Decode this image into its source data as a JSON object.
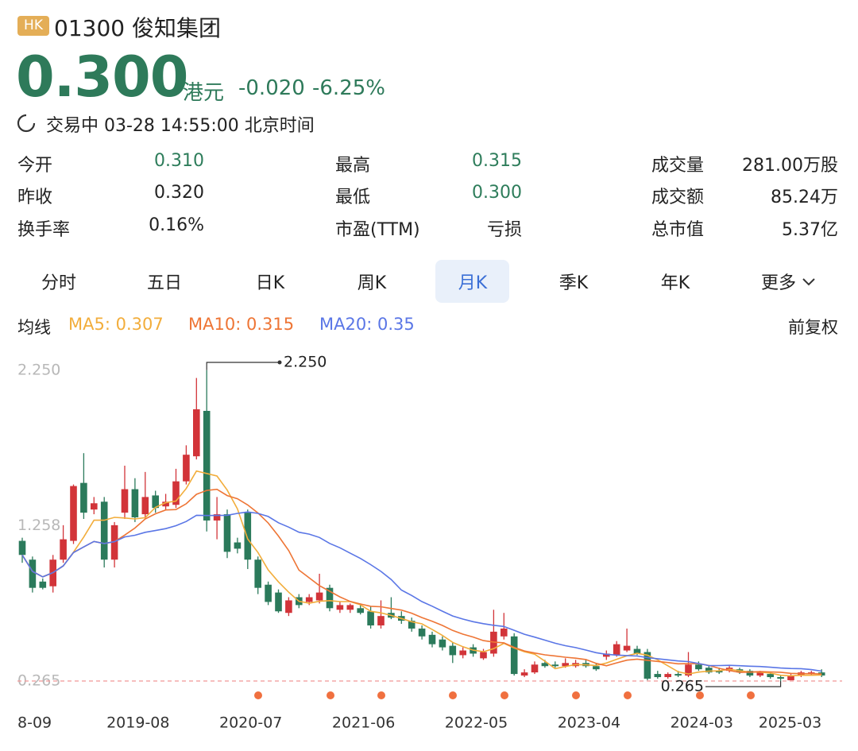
{
  "header": {
    "market": "HK",
    "code_name": "01300 俊知集团",
    "price": "0.300",
    "currency": "港元",
    "change": "-0.020",
    "change_pct": "-6.25%",
    "status": "交易中 03-28 14:55:00 北京时间"
  },
  "stats": [
    [
      {
        "label": "今开",
        "value": "0.310",
        "color": "#2e7d5b"
      },
      {
        "label": "最高",
        "value": "0.315",
        "color": "#2e7d5b"
      },
      {
        "label": "成交量",
        "value": "281.00万股"
      }
    ],
    [
      {
        "label": "昨收",
        "value": "0.320"
      },
      {
        "label": "最低",
        "value": "0.300",
        "color": "#2e7d5b"
      },
      {
        "label": "成交额",
        "value": "85.24万"
      }
    ],
    [
      {
        "label": "换手率",
        "value": "0.16%"
      },
      {
        "label": "市盈(TTM)",
        "value": "亏损"
      },
      {
        "label": "总市值",
        "value": "5.37亿"
      }
    ]
  ],
  "tabs": [
    "分时",
    "五日",
    "日K",
    "周K",
    "月K",
    "季K",
    "年K",
    "更多"
  ],
  "active_tab": 4,
  "ma_legend": {
    "title": "均线",
    "items": [
      {
        "label": "MA5: 0.307",
        "color": "#f2ad3b",
        "period": 5
      },
      {
        "label": "MA10: 0.315",
        "color": "#ee7535",
        "period": 10
      },
      {
        "label": "MA20: 0.35",
        "color": "#5a76e6",
        "period": 20
      }
    ]
  },
  "adjust": "前复权",
  "chart": {
    "type": "candlestick",
    "up_color": "#d23439",
    "down_color": "#2b7a5b",
    "ylim": [
      0.148,
      2.33
    ],
    "yticks": [
      {
        "value": 2.25,
        "label": "2.250"
      },
      {
        "value": 1.258,
        "label": "1.258"
      },
      {
        "value": 0.265,
        "label": "0.265"
      }
    ],
    "max_label": {
      "value": 2.25,
      "label": "2.250"
    },
    "min_label": {
      "value": 0.265,
      "label": "0.265"
    },
    "categories": [
      null,
      "8-09",
      null,
      null,
      null,
      null,
      null,
      null,
      null,
      null,
      null,
      null,
      "2019-08",
      null,
      null,
      null,
      null,
      null,
      null,
      null,
      null,
      null,
      null,
      "2020-07",
      null,
      null,
      null,
      null,
      null,
      null,
      null,
      null,
      null,
      null,
      "2021-06",
      null,
      null,
      null,
      null,
      null,
      null,
      null,
      null,
      null,
      null,
      "2022-05",
      null,
      null,
      null,
      null,
      null,
      null,
      null,
      null,
      null,
      null,
      "2023-04",
      null,
      null,
      null,
      null,
      null,
      null,
      null,
      null,
      null,
      null,
      "2024-03",
      null,
      null,
      null,
      null,
      null,
      null,
      null,
      null,
      null,
      null,
      "2025-03"
    ],
    "candles": [
      [
        1.16,
        1.18,
        1.02,
        1.07
      ],
      [
        1.04,
        1.06,
        0.83,
        0.86
      ],
      [
        0.9,
        0.92,
        0.85,
        0.86
      ],
      [
        0.87,
        1.07,
        0.83,
        1.04
      ],
      [
        1.04,
        1.26,
        1.02,
        1.17
      ],
      [
        1.16,
        1.52,
        1.14,
        1.51
      ],
      [
        1.53,
        1.72,
        1.3,
        1.34
      ],
      [
        1.36,
        1.44,
        1.33,
        1.4
      ],
      [
        1.41,
        1.44,
        0.99,
        1.04
      ],
      [
        1.04,
        1.28,
        0.99,
        1.26
      ],
      [
        1.34,
        1.64,
        1.3,
        1.49
      ],
      [
        1.49,
        1.56,
        1.28,
        1.31
      ],
      [
        1.33,
        1.6,
        1.3,
        1.44
      ],
      [
        1.45,
        1.48,
        1.34,
        1.37
      ],
      [
        1.38,
        1.46,
        1.36,
        1.41
      ],
      [
        1.39,
        1.62,
        1.37,
        1.54
      ],
      [
        1.54,
        1.77,
        1.52,
        1.71
      ],
      [
        1.7,
        2.2,
        1.68,
        2.0
      ],
      [
        1.99,
        2.25,
        1.22,
        1.29
      ],
      [
        1.29,
        1.44,
        1.17,
        1.33
      ],
      [
        1.33,
        1.36,
        1.05,
        1.09
      ],
      [
        1.15,
        1.18,
        1.08,
        1.11
      ],
      [
        1.34,
        1.36,
        0.98,
        1.04
      ],
      [
        1.04,
        1.06,
        0.82,
        0.86
      ],
      [
        0.88,
        0.9,
        0.75,
        0.77
      ],
      [
        0.83,
        0.85,
        0.7,
        0.71
      ],
      [
        0.7,
        0.8,
        0.68,
        0.78
      ],
      [
        0.8,
        0.82,
        0.73,
        0.75
      ],
      [
        0.77,
        0.82,
        0.75,
        0.8
      ],
      [
        0.78,
        0.95,
        0.76,
        0.83
      ],
      [
        0.86,
        0.88,
        0.71,
        0.73
      ],
      [
        0.72,
        0.77,
        0.7,
        0.75
      ],
      [
        0.72,
        0.76,
        0.7,
        0.75
      ],
      [
        0.73,
        0.76,
        0.69,
        0.7
      ],
      [
        0.71,
        0.74,
        0.6,
        0.62
      ],
      [
        0.62,
        0.78,
        0.6,
        0.68
      ],
      [
        0.7,
        0.8,
        0.66,
        0.67
      ],
      [
        0.68,
        0.71,
        0.63,
        0.65
      ],
      [
        0.65,
        0.67,
        0.58,
        0.6
      ],
      [
        0.6,
        0.62,
        0.53,
        0.55
      ],
      [
        0.56,
        0.58,
        0.48,
        0.5
      ],
      [
        0.53,
        0.55,
        0.46,
        0.48
      ],
      [
        0.49,
        0.51,
        0.38,
        0.43
      ],
      [
        0.43,
        0.48,
        0.41,
        0.46
      ],
      [
        0.48,
        0.5,
        0.42,
        0.44
      ],
      [
        0.41,
        0.47,
        0.4,
        0.45
      ],
      [
        0.44,
        0.72,
        0.42,
        0.58
      ],
      [
        0.55,
        0.7,
        0.53,
        0.6
      ],
      [
        0.55,
        0.57,
        0.3,
        0.31
      ],
      [
        0.3,
        0.34,
        0.29,
        0.32
      ],
      [
        0.32,
        0.39,
        0.31,
        0.37
      ],
      [
        0.38,
        0.4,
        0.35,
        0.36
      ],
      [
        0.37,
        0.39,
        0.35,
        0.36
      ],
      [
        0.36,
        0.41,
        0.35,
        0.38
      ],
      [
        0.36,
        0.4,
        0.35,
        0.38
      ],
      [
        0.38,
        0.4,
        0.35,
        0.36
      ],
      [
        0.36,
        0.38,
        0.33,
        0.34
      ],
      [
        0.42,
        0.46,
        0.4,
        0.44
      ],
      [
        0.43,
        0.52,
        0.42,
        0.5
      ],
      [
        0.46,
        0.6,
        0.45,
        0.49
      ],
      [
        0.47,
        0.49,
        0.43,
        0.44
      ],
      [
        0.45,
        0.47,
        0.27,
        0.28
      ],
      [
        0.31,
        0.33,
        0.28,
        0.29
      ],
      [
        0.29,
        0.32,
        0.28,
        0.31
      ],
      [
        0.31,
        0.33,
        0.29,
        0.3
      ],
      [
        0.3,
        0.45,
        0.29,
        0.37
      ],
      [
        0.37,
        0.39,
        0.33,
        0.34
      ],
      [
        0.35,
        0.36,
        0.31,
        0.32
      ],
      [
        0.33,
        0.35,
        0.31,
        0.32
      ],
      [
        0.33,
        0.36,
        0.32,
        0.35
      ],
      [
        0.34,
        0.35,
        0.31,
        0.32
      ],
      [
        0.33,
        0.34,
        0.29,
        0.3
      ],
      [
        0.3,
        0.33,
        0.29,
        0.32
      ],
      [
        0.31,
        0.32,
        0.28,
        0.29
      ],
      [
        0.29,
        0.3,
        0.265,
        0.28
      ],
      [
        0.27,
        0.31,
        0.27,
        0.3
      ],
      [
        0.3,
        0.33,
        0.29,
        0.32
      ],
      [
        0.31,
        0.33,
        0.3,
        0.32
      ],
      [
        0.32,
        0.34,
        0.29,
        0.3
      ]
    ]
  }
}
